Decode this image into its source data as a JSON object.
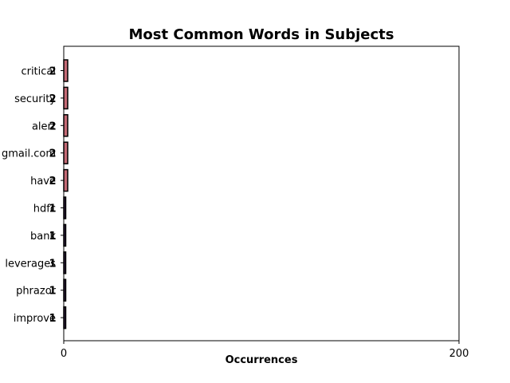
{
  "chart_data": {
    "type": "bar",
    "orientation": "horizontal",
    "title": "Most Common Words in Subjects",
    "xlabel": "Occurrences",
    "ylabel": "",
    "xlim": [
      0,
      200
    ],
    "xticks": [
      "0",
      "200"
    ],
    "categories": [
      "critical",
      "security",
      "alert",
      "gmail.com",
      "have",
      "hdfc",
      "bank",
      "leverages",
      "phrazor",
      "improve"
    ],
    "values": [
      2,
      2,
      2,
      2,
      2,
      1,
      1,
      1,
      1,
      1
    ],
    "bar_colors": [
      "#c46a75",
      "#c46a75",
      "#c46a75",
      "#c46a75",
      "#c46a75",
      "#2d1b3d",
      "#2d1b3d",
      "#2d1b3d",
      "#2d1b3d",
      "#2d1b3d"
    ],
    "grid": false,
    "legend": "none"
  }
}
